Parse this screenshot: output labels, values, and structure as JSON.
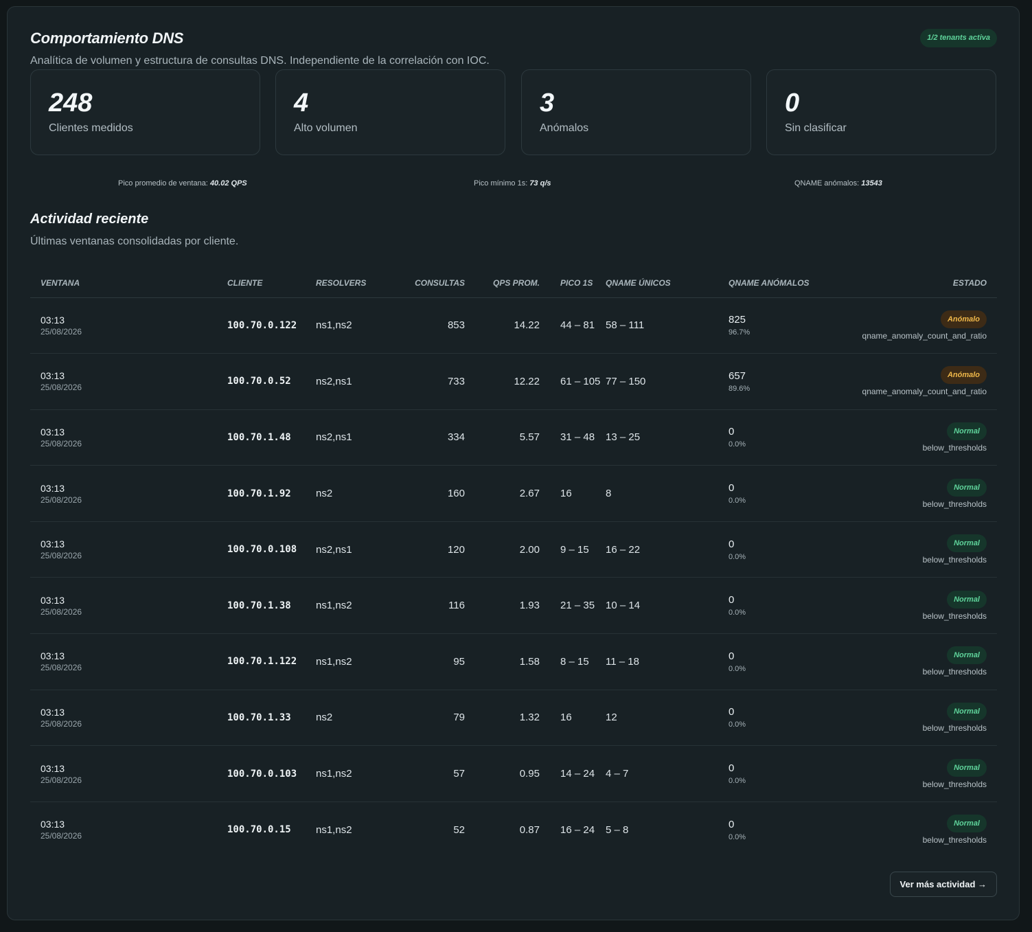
{
  "header": {
    "title": "Comportamiento DNS",
    "subtitle": "Analítica de volumen y estructura de consultas DNS. Independiente de la correlación con IOC.",
    "tenant_badge": "1/2 tenants activa"
  },
  "stats": [
    {
      "value": "248",
      "label": "Clientes medidos"
    },
    {
      "value": "4",
      "label": "Alto volumen"
    },
    {
      "value": "3",
      "label": "Anómalos"
    },
    {
      "value": "0",
      "label": "Sin clasificar"
    }
  ],
  "metrics": [
    {
      "label": "Pico promedio de ventana:",
      "value": "40.02 QPS"
    },
    {
      "label": "Pico mínimo 1s:",
      "value": "73 q/s"
    },
    {
      "label": "QNAME anómalos:",
      "value": "13543"
    }
  ],
  "activity": {
    "title": "Actividad reciente",
    "subtitle": "Últimas ventanas consolidadas por cliente.",
    "columns": [
      "VENTANA",
      "CLIENTE",
      "RESOLVERS",
      "CONSULTAS",
      "QPS PROM.",
      "PICO 1S",
      "QNAME ÚNICOS",
      "QNAME ANÓMALOS",
      "ESTADO"
    ],
    "rows": [
      {
        "time": "03:13",
        "date": "25/08/2026",
        "client": "100.70.0.122",
        "resolvers": "ns1,ns2",
        "queries": "853",
        "qps": "14.22",
        "peak": "44 – 81",
        "unique": "58 – 111",
        "anom_count": "825",
        "anom_ratio": "96.7%",
        "status": "Anómalo",
        "reason": "qname_anomaly_count_and_ratio",
        "status_type": "anom"
      },
      {
        "time": "03:13",
        "date": "25/08/2026",
        "client": "100.70.0.52",
        "resolvers": "ns2,ns1",
        "queries": "733",
        "qps": "12.22",
        "peak": "61 – 105",
        "unique": "77 – 150",
        "anom_count": "657",
        "anom_ratio": "89.6%",
        "status": "Anómalo",
        "reason": "qname_anomaly_count_and_ratio",
        "status_type": "anom"
      },
      {
        "time": "03:13",
        "date": "25/08/2026",
        "client": "100.70.1.48",
        "resolvers": "ns2,ns1",
        "queries": "334",
        "qps": "5.57",
        "peak": "31 – 48",
        "unique": "13 – 25",
        "anom_count": "0",
        "anom_ratio": "0.0%",
        "status": "Normal",
        "reason": "below_thresholds",
        "status_type": "norm"
      },
      {
        "time": "03:13",
        "date": "25/08/2026",
        "client": "100.70.1.92",
        "resolvers": "ns2",
        "queries": "160",
        "qps": "2.67",
        "peak": "16",
        "unique": "8",
        "anom_count": "0",
        "anom_ratio": "0.0%",
        "status": "Normal",
        "reason": "below_thresholds",
        "status_type": "norm"
      },
      {
        "time": "03:13",
        "date": "25/08/2026",
        "client": "100.70.0.108",
        "resolvers": "ns2,ns1",
        "queries": "120",
        "qps": "2.00",
        "peak": "9 – 15",
        "unique": "16 – 22",
        "anom_count": "0",
        "anom_ratio": "0.0%",
        "status": "Normal",
        "reason": "below_thresholds",
        "status_type": "norm"
      },
      {
        "time": "03:13",
        "date": "25/08/2026",
        "client": "100.70.1.38",
        "resolvers": "ns1,ns2",
        "queries": "116",
        "qps": "1.93",
        "peak": "21 – 35",
        "unique": "10 – 14",
        "anom_count": "0",
        "anom_ratio": "0.0%",
        "status": "Normal",
        "reason": "below_thresholds",
        "status_type": "norm"
      },
      {
        "time": "03:13",
        "date": "25/08/2026",
        "client": "100.70.1.122",
        "resolvers": "ns1,ns2",
        "queries": "95",
        "qps": "1.58",
        "peak": "8 – 15",
        "unique": "11 – 18",
        "anom_count": "0",
        "anom_ratio": "0.0%",
        "status": "Normal",
        "reason": "below_thresholds",
        "status_type": "norm"
      },
      {
        "time": "03:13",
        "date": "25/08/2026",
        "client": "100.70.1.33",
        "resolvers": "ns2",
        "queries": "79",
        "qps": "1.32",
        "peak": "16",
        "unique": "12",
        "anom_count": "0",
        "anom_ratio": "0.0%",
        "status": "Normal",
        "reason": "below_thresholds",
        "status_type": "norm"
      },
      {
        "time": "03:13",
        "date": "25/08/2026",
        "client": "100.70.0.103",
        "resolvers": "ns1,ns2",
        "queries": "57",
        "qps": "0.95",
        "peak": "14 – 24",
        "unique": "4 – 7",
        "anom_count": "0",
        "anom_ratio": "0.0%",
        "status": "Normal",
        "reason": "below_thresholds",
        "status_type": "norm"
      },
      {
        "time": "03:13",
        "date": "25/08/2026",
        "client": "100.70.0.15",
        "resolvers": "ns1,ns2",
        "queries": "52",
        "qps": "0.87",
        "peak": "16 – 24",
        "unique": "5 – 8",
        "anom_count": "0",
        "anom_ratio": "0.0%",
        "status": "Normal",
        "reason": "below_thresholds",
        "status_type": "norm"
      }
    ],
    "more_button": "Ver más actividad →"
  },
  "colors": {
    "background": "#111719",
    "panel": "#182125",
    "anomalous": "#f0b84a",
    "normal": "#5fd49b"
  }
}
